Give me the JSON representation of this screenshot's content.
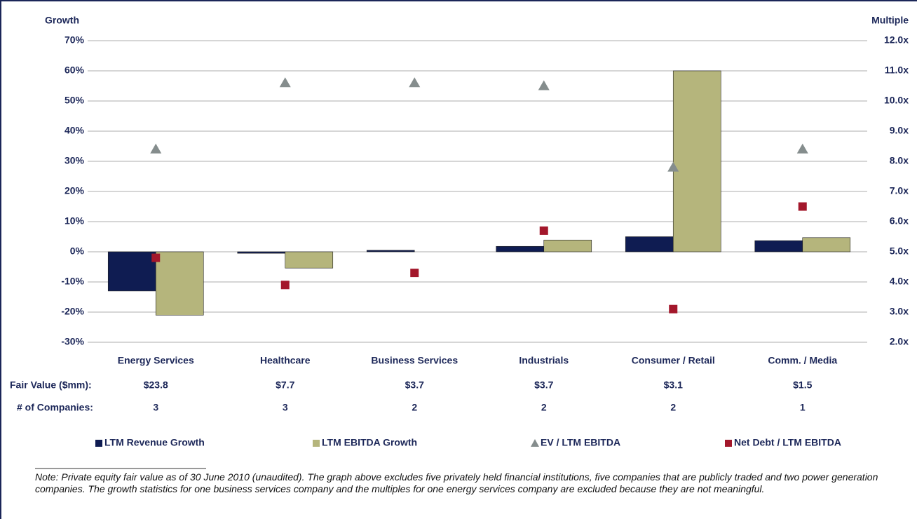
{
  "chart_data": {
    "type": "bar",
    "y_axis_title": "Growth",
    "y2_axis_title": "Multiple",
    "categories": [
      "Energy Services",
      "Healthcare",
      "Business Services",
      "Industrials",
      "Consumer / Retail",
      "Comm. / Media"
    ],
    "series": [
      {
        "name": "LTM Revenue Growth",
        "type": "bar",
        "color": "#0f1c52",
        "values": [
          -13,
          -0.5,
          0.5,
          1.8,
          5,
          3.7
        ]
      },
      {
        "name": "LTM EBITDA Growth",
        "type": "bar",
        "color": "#b5b57c",
        "values": [
          -21,
          -5.4,
          null,
          3.9,
          60,
          4.7
        ]
      },
      {
        "name": "EV / LTM EBITDA",
        "type": "scatter",
        "marker": "triangle",
        "axis": "y2",
        "color": "#858d8d",
        "values": [
          8.4,
          10.6,
          10.6,
          10.5,
          7.8,
          8.4
        ]
      },
      {
        "name": "Net Debt / LTM EBITDA",
        "type": "scatter",
        "marker": "square",
        "axis": "y2",
        "color": "#a3172b",
        "values": [
          4.8,
          3.9,
          4.3,
          5.7,
          3.1,
          6.5
        ]
      }
    ],
    "ylim": [
      -30,
      70
    ],
    "yticks": [
      {
        "value": 70,
        "label": "70%"
      },
      {
        "value": 60,
        "label": "60%"
      },
      {
        "value": 50,
        "label": "50%"
      },
      {
        "value": 40,
        "label": "40%"
      },
      {
        "value": 30,
        "label": "30%"
      },
      {
        "value": 20,
        "label": "20%"
      },
      {
        "value": 10,
        "label": "10%"
      },
      {
        "value": 0,
        "label": "0%"
      },
      {
        "value": -10,
        "label": "-10%"
      },
      {
        "value": -20,
        "label": "-20%"
      },
      {
        "value": -30,
        "label": "-30%"
      }
    ],
    "y2lim": [
      2,
      12
    ],
    "y2ticks": [
      {
        "value": 12,
        "label": "12.0x"
      },
      {
        "value": 11,
        "label": "11.0x"
      },
      {
        "value": 10,
        "label": "10.0x"
      },
      {
        "value": 9,
        "label": "9.0x"
      },
      {
        "value": 8,
        "label": "8.0x"
      },
      {
        "value": 7,
        "label": "7.0x"
      },
      {
        "value": 6,
        "label": "6.0x"
      },
      {
        "value": 5,
        "label": "5.0x"
      },
      {
        "value": 4,
        "label": "4.0x"
      },
      {
        "value": 3,
        "label": "3.0x"
      },
      {
        "value": 2,
        "label": "2.0x"
      }
    ],
    "grid": true,
    "legend": "bottom",
    "table": {
      "rows": [
        {
          "label": "Fair Value ($mm):",
          "cells": [
            "$23.8",
            "$7.7",
            "$3.7",
            "$3.7",
            "$3.1",
            "$1.5"
          ]
        },
        {
          "label": "# of Companies:",
          "cells": [
            3,
            3,
            2,
            2,
            2,
            1
          ]
        }
      ]
    },
    "note": "Note: Private equity fair value as of 30 June 2010 (unaudited). The graph above excludes five privately held financial institutions, five companies that are publicly traded and two power generation companies. The growth statistics for one business services company and the multiples for one energy services company are excluded because they are not meaningful."
  }
}
